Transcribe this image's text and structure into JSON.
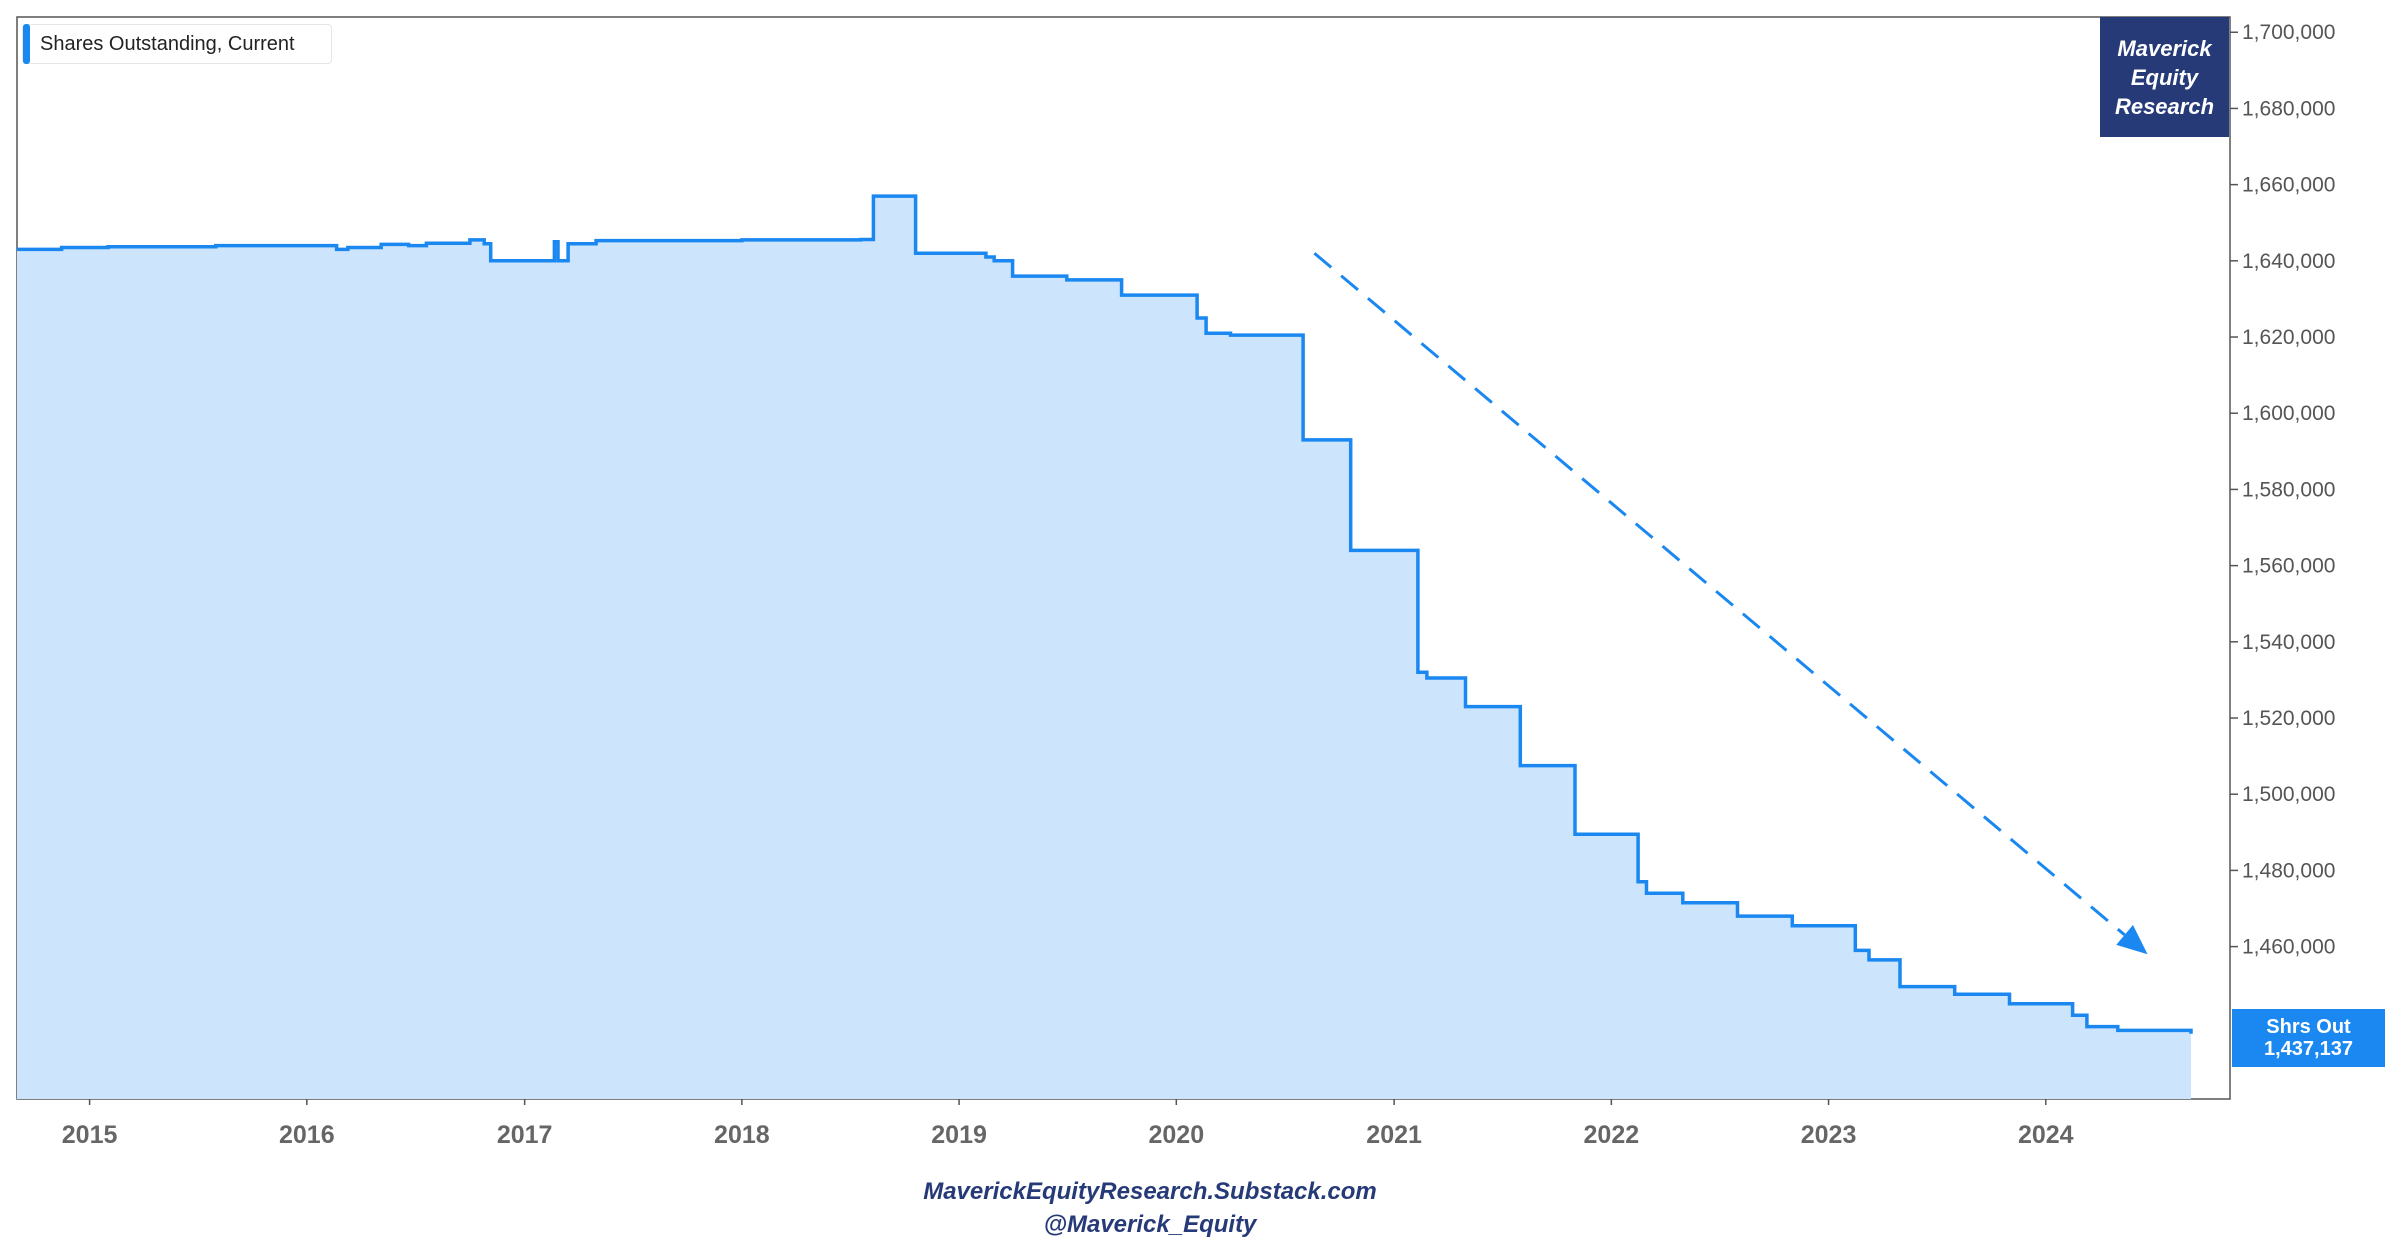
{
  "chart_data": {
    "type": "area",
    "series": [
      {
        "name": "Shares Outstanding, Current",
        "color": "#1a88f0",
        "fill": "#cce5fd",
        "step": true,
        "points": [
          [
            "2014-09-01",
            1643000
          ],
          [
            "2014-11-15",
            1643500
          ],
          [
            "2015-02-01",
            1643700
          ],
          [
            "2015-08-01",
            1644000
          ],
          [
            "2016-02-20",
            1643000
          ],
          [
            "2016-03-10",
            1643500
          ],
          [
            "2016-05-05",
            1644300
          ],
          [
            "2016-06-20",
            1644000
          ],
          [
            "2016-07-20",
            1644600
          ],
          [
            "2016-10-01",
            1645500
          ],
          [
            "2016-10-25",
            1644500
          ],
          [
            "2016-11-05",
            1640000
          ],
          [
            "2017-02-20",
            1645000
          ],
          [
            "2017-02-26",
            1640000
          ],
          [
            "2017-03-15",
            1644500
          ],
          [
            "2017-05-01",
            1645300
          ],
          [
            "2018-01-01",
            1645500
          ],
          [
            "2018-07-20",
            1645600
          ],
          [
            "2018-08-10",
            1657000
          ],
          [
            "2018-10-20",
            1642000
          ],
          [
            "2019-02-15",
            1641000
          ],
          [
            "2019-03-01",
            1640000
          ],
          [
            "2019-04-01",
            1636000
          ],
          [
            "2019-07-01",
            1635000
          ],
          [
            "2019-10-01",
            1631000
          ],
          [
            "2020-02-05",
            1625000
          ],
          [
            "2020-02-20",
            1621000
          ],
          [
            "2020-04-01",
            1620500
          ],
          [
            "2020-08-01",
            1593000
          ],
          [
            "2020-10-20",
            1564000
          ],
          [
            "2021-02-10",
            1532000
          ],
          [
            "2021-02-25",
            1530500
          ],
          [
            "2021-05-01",
            1523000
          ],
          [
            "2021-08-01",
            1507500
          ],
          [
            "2021-11-01",
            1489500
          ],
          [
            "2022-02-15",
            1477000
          ],
          [
            "2022-03-01",
            1474000
          ],
          [
            "2022-05-01",
            1471500
          ],
          [
            "2022-08-01",
            1468000
          ],
          [
            "2022-11-01",
            1465500
          ],
          [
            "2023-02-15",
            1459000
          ],
          [
            "2023-03-10",
            1456500
          ],
          [
            "2023-05-01",
            1449500
          ],
          [
            "2023-08-01",
            1447500
          ],
          [
            "2023-11-01",
            1445000
          ],
          [
            "2024-02-15",
            1442000
          ],
          [
            "2024-03-10",
            1439000
          ],
          [
            "2024-05-01",
            1438000
          ],
          [
            "2024-09-01",
            1437137
          ]
        ]
      }
    ],
    "x_range": [
      "2014-09-01",
      "2024-09-01"
    ],
    "x_ticks": [
      "2015",
      "2016",
      "2017",
      "2018",
      "2019",
      "2020",
      "2021",
      "2022",
      "2023",
      "2024"
    ],
    "y_range": [
      1420000,
      1704000
    ],
    "y_ticks": [
      1460000,
      1480000,
      1500000,
      1520000,
      1540000,
      1560000,
      1580000,
      1600000,
      1620000,
      1640000,
      1660000,
      1680000,
      1700000
    ],
    "y_tick_labels": [
      "1,460,000",
      "1,480,000",
      "1,500,000",
      "1,520,000",
      "1,540,000",
      "1,560,000",
      "1,580,000",
      "1,600,000",
      "1,620,000",
      "1,640,000",
      "1,660,000",
      "1,680,000",
      "1,700,000"
    ],
    "y_axis_side": "right",
    "grid": false,
    "legend_position": "top-left",
    "trend_arrow": {
      "style": "dashed",
      "color": "#1a88f0",
      "from": [
        "2020-08-20",
        1642000
      ],
      "to": [
        "2024-06-20",
        1458000
      ]
    },
    "last_value_label": {
      "title": "Shrs Out",
      "value": "1,437,137"
    }
  },
  "brand": {
    "lines": [
      "Maverick",
      "Equity",
      "Research"
    ],
    "background": "#263a78"
  },
  "footer": {
    "line1": "MaverickEquityResearch.Substack.com",
    "line2": "@Maverick_Equity"
  }
}
